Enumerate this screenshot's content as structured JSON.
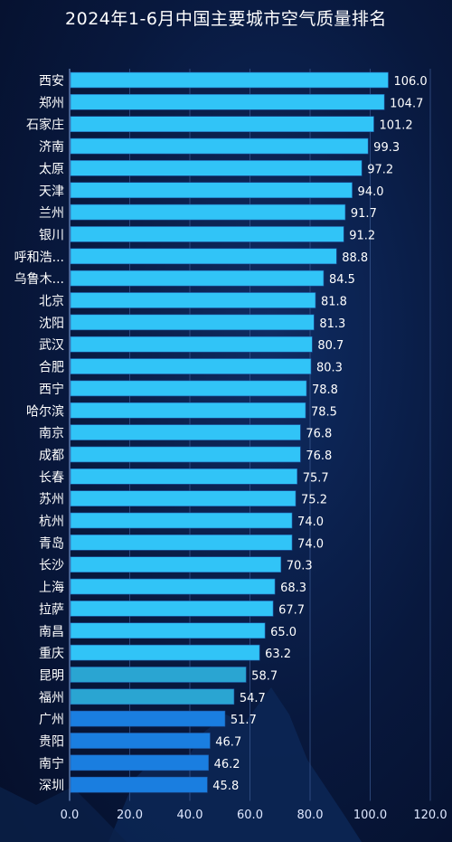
{
  "chart_data": {
    "type": "bar",
    "orientation": "horizontal",
    "title": "2024年1-6月中国主要城市空气质量排名",
    "xlabel": "",
    "ylabel": "",
    "xlim": [
      0,
      120
    ],
    "x_ticks": [
      "0.0",
      "20.0",
      "40.0",
      "60.0",
      "80.0",
      "100.0",
      "120.0"
    ],
    "grid": true,
    "categories": [
      "西安",
      "郑州",
      "石家庄",
      "济南",
      "太原",
      "天津",
      "兰州",
      "银川",
      "呼和浩...",
      "乌鲁木...",
      "北京",
      "沈阳",
      "武汉",
      "合肥",
      "西宁",
      "哈尔滨",
      "南京",
      "成都",
      "长春",
      "苏州",
      "杭州",
      "青岛",
      "长沙",
      "上海",
      "拉萨",
      "南昌",
      "重庆",
      "昆明",
      "福州",
      "广州",
      "贵阳",
      "南宁",
      "深圳"
    ],
    "values": [
      106.0,
      104.7,
      101.2,
      99.3,
      97.2,
      94.0,
      91.7,
      91.2,
      88.8,
      84.5,
      81.8,
      81.3,
      80.7,
      80.3,
      78.8,
      78.5,
      76.8,
      76.8,
      75.7,
      75.2,
      74.0,
      74.0,
      70.3,
      68.3,
      67.7,
      65.0,
      63.2,
      58.7,
      54.7,
      51.7,
      46.7,
      46.2,
      45.8
    ],
    "value_labels": [
      "106.0",
      "104.7",
      "101.2",
      "99.3",
      "97.2",
      "94.0",
      "91.7",
      "91.2",
      "88.8",
      "84.5",
      "81.8",
      "81.3",
      "80.7",
      "80.3",
      "78.8",
      "78.5",
      "76.8",
      "76.8",
      "75.7",
      "75.2",
      "74.0",
      "74.0",
      "70.3",
      "68.3",
      "67.7",
      "65.0",
      "63.2",
      "58.7",
      "54.7",
      "51.7",
      "46.7",
      "46.2",
      "45.8"
    ],
    "bar_colors": {
      "top": "#31c4f7",
      "middle": "#2aa5d2",
      "bottom": "#1a7ee0"
    }
  }
}
